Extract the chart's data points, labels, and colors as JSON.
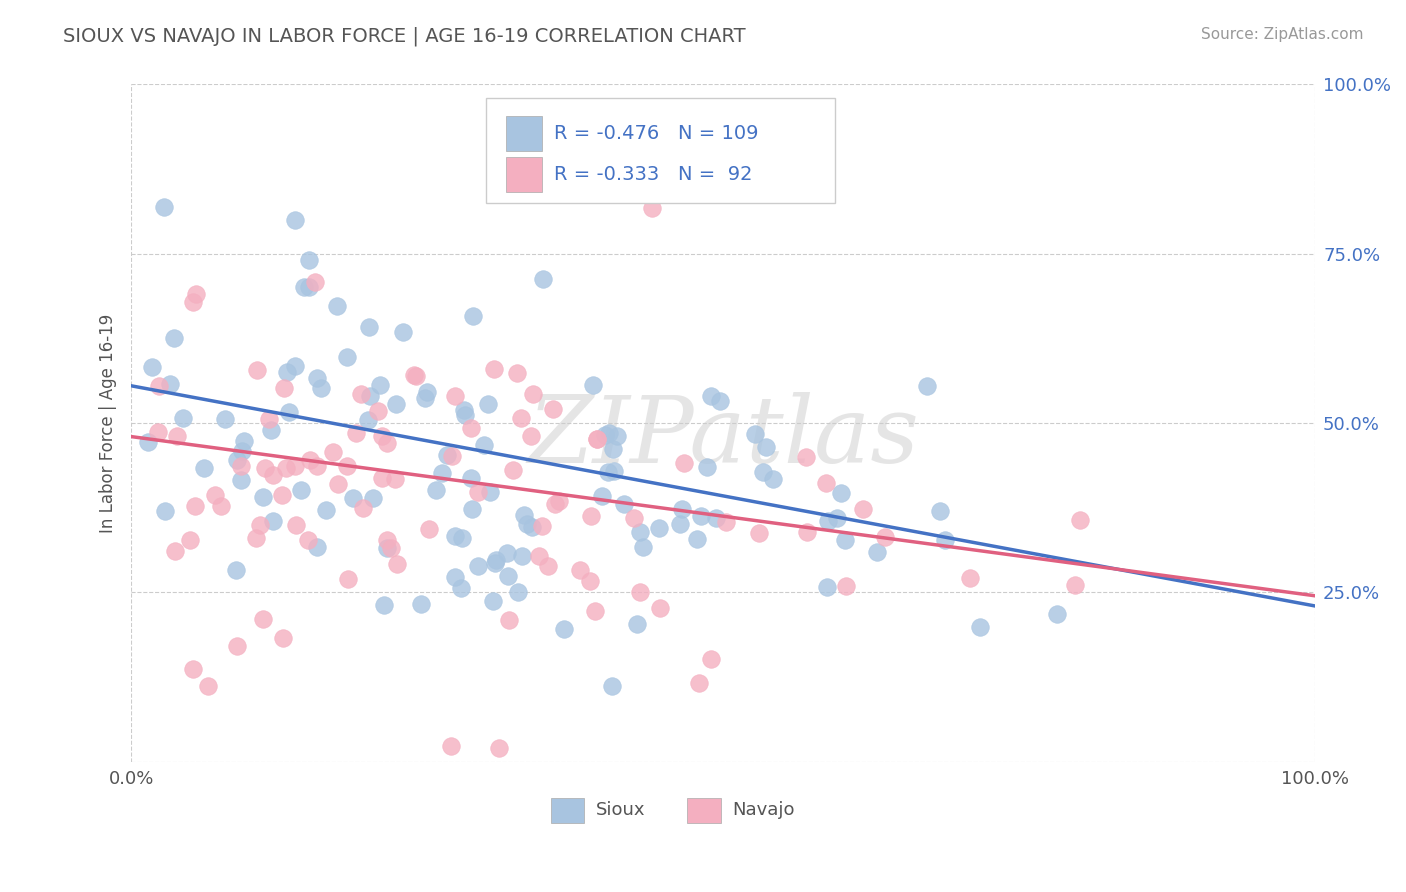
{
  "title": "SIOUX VS NAVAJO IN LABOR FORCE | AGE 16-19 CORRELATION CHART",
  "source_text": "Source: ZipAtlas.com",
  "ylabel": "In Labor Force | Age 16-19",
  "legend_labels": [
    "Sioux",
    "Navajo"
  ],
  "sioux_color": "#a8c4e0",
  "navajo_color": "#f4afc0",
  "sioux_line_color": "#4472c4",
  "navajo_line_color": "#e06080",
  "R_sioux": -0.476,
  "N_sioux": 109,
  "R_navajo": -0.333,
  "N_navajo": 92,
  "watermark": "ZIPatlas",
  "background_color": "#ffffff",
  "grid_color": "#cccccc",
  "title_color": "#555555",
  "source_color": "#999999",
  "legend_text_color": "#4472c4",
  "sioux_intercept": 0.555,
  "sioux_slope": -0.325,
  "navajo_intercept": 0.48,
  "navajo_slope": -0.235
}
